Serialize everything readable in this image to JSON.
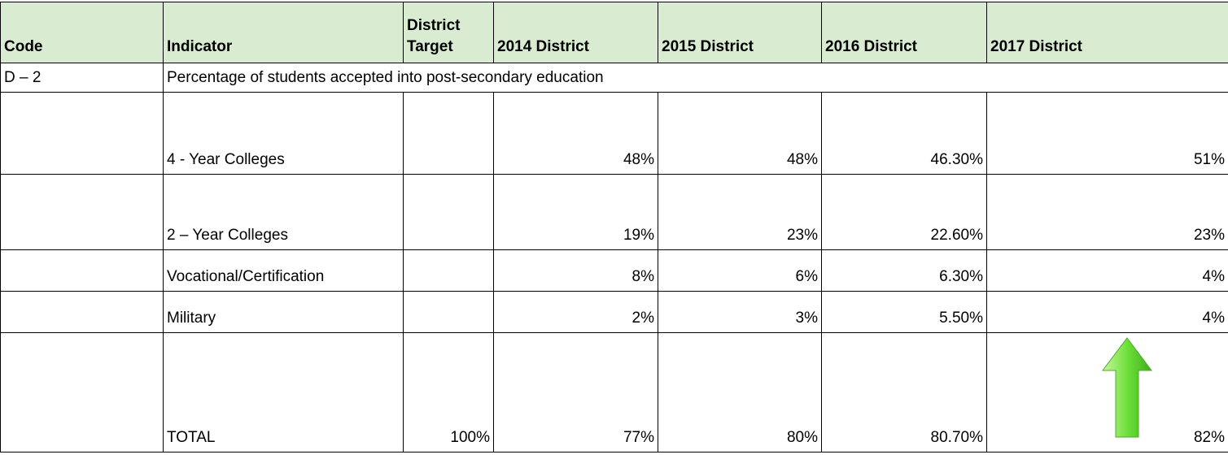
{
  "table": {
    "header": [
      "Code",
      "Indicator",
      "District Target",
      "2014 District",
      "2015 District",
      "2016 District",
      "2017 District"
    ],
    "section": {
      "code": "D – 2",
      "description": "Percentage of students accepted into post-secondary education"
    },
    "rows": [
      {
        "indicator": "4 - Year Colleges",
        "values": [
          "48%",
          "48%",
          "46.30%",
          "51%"
        ]
      },
      {
        "indicator": "2 – Year Colleges",
        "values": [
          "19%",
          "23%",
          "22.60%",
          "23%"
        ]
      },
      {
        "indicator": "Vocational/Certification",
        "values": [
          "8%",
          "6%",
          "6.30%",
          "4%"
        ]
      },
      {
        "indicator": "Military",
        "values": [
          "2%",
          "3%",
          "5.50%",
          "4%"
        ]
      },
      {
        "indicator": "TOTAL",
        "target": "100%",
        "values": [
          "77%",
          "80%",
          "80.70%",
          "82%"
        ]
      }
    ]
  }
}
